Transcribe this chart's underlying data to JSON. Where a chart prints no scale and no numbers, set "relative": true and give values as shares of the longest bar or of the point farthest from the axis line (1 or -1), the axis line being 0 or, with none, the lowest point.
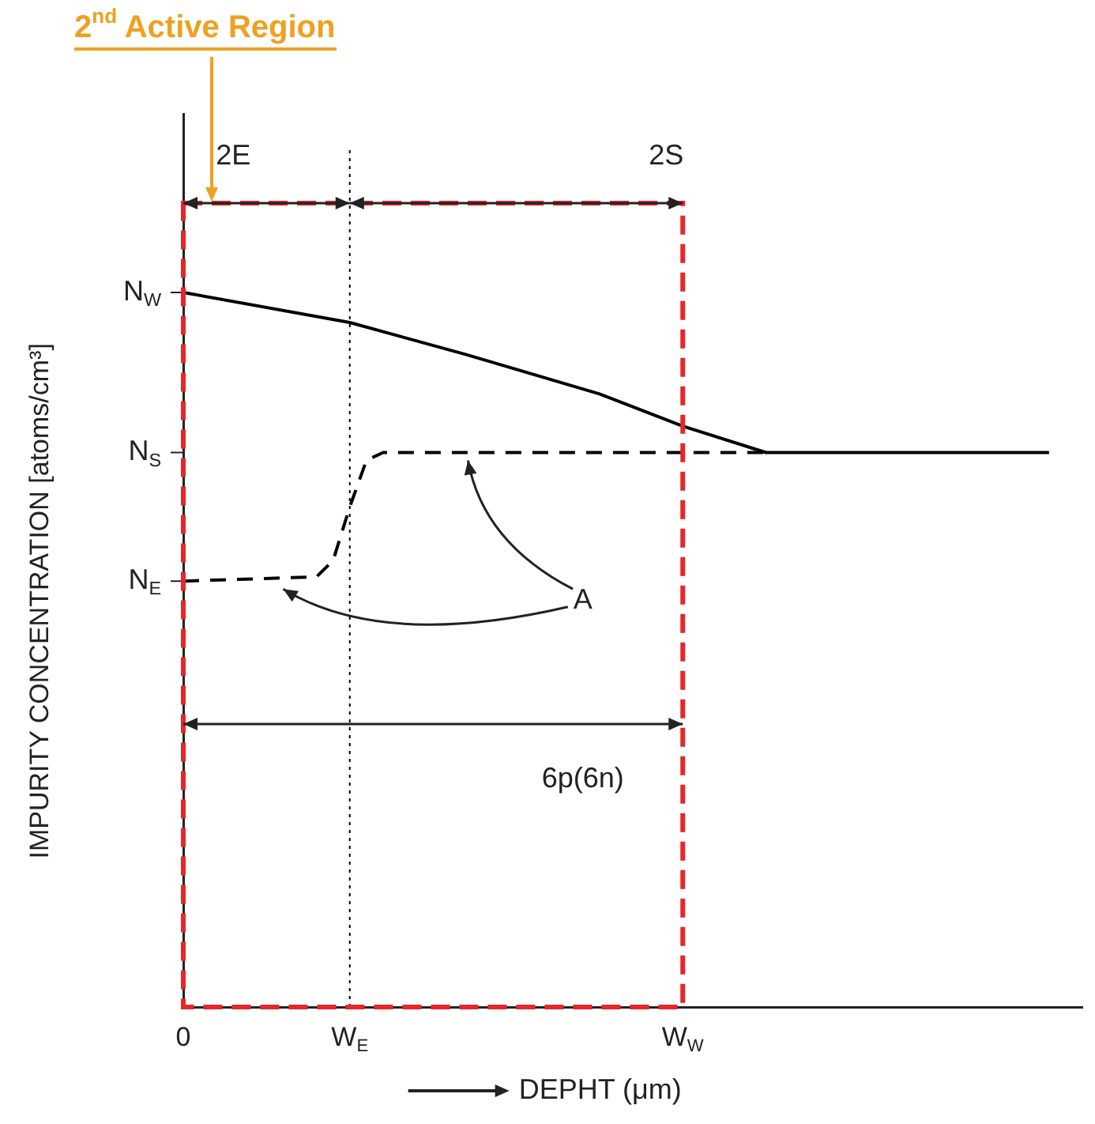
{
  "chart_data": {
    "type": "line",
    "relative": true,
    "title": "2$^{nd}$ Active Region",
    "xlabel": "DEPHT (μm)",
    "ylabel": "IMPURITY CONCENTRATION [atoms/cm³]",
    "categories": [
      "0",
      null,
      null,
      null,
      null,
      null,
      null,
      null,
      null,
      null,
      "W$_{E}$",
      null,
      null,
      null,
      null,
      null,
      null,
      null,
      null,
      null,
      null,
      null,
      null,
      null,
      null,
      null,
      null,
      null,
      null,
      null,
      "W$_{W}$",
      null,
      null,
      null,
      null,
      null,
      null,
      null,
      null,
      null,
      null,
      null,
      null,
      null,
      null,
      null,
      null,
      null,
      null,
      null,
      null,
      null,
      null,
      null,
      null
    ],
    "series": [
      {
        "color": "#000000",
        "line_style": "solid",
        "values": [
          1,
          null,
          null,
          null,
          null,
          null,
          null,
          null,
          null,
          null,
          0.958,
          null,
          null,
          null,
          null,
          null,
          null,
          0.913,
          null,
          null,
          null,
          null,
          null,
          null,
          null,
          0.858,
          null,
          null,
          null,
          null,
          0.813,
          null,
          null,
          null,
          null,
          0.776,
          null,
          null,
          null,
          null,
          null,
          null,
          null,
          null,
          null,
          null,
          null,
          null,
          null,
          null,
          null,
          null,
          0.776,
          null,
          null
        ]
      },
      {
        "color": "#000000",
        "line_style": "dashed",
        "values": [
          0.596,
          null,
          null,
          null,
          null,
          null,
          null,
          null,
          0.602,
          0.625,
          0.7,
          0.765,
          0.776,
          null,
          null,
          null,
          null,
          null,
          null,
          null,
          null,
          null,
          null,
          null,
          null,
          null,
          null,
          null,
          null,
          null,
          null,
          null,
          null,
          null,
          null,
          0.776,
          null,
          null,
          null,
          null,
          null,
          null,
          null,
          null,
          null,
          null,
          null,
          null,
          null,
          null,
          null,
          null,
          null,
          null,
          null
        ]
      }
    ],
    "annotations": [
      {
        "text": "N$_{W}$",
        "x": "0",
        "y": 1
      },
      "N$_{S}$",
      {
        "text": "N$_{E}$",
        "x": "0",
        "y": 0.596
      },
      "2E",
      "2S",
      "6p(6n)",
      "A"
    ],
    "ref_lines": [
      {
        "axis": "x",
        "value": "W$_{E}$",
        "line_style": "dotted",
        "color": "#000000"
      }
    ],
    "marker": "none",
    "grid": false,
    "legend": false
  }
}
